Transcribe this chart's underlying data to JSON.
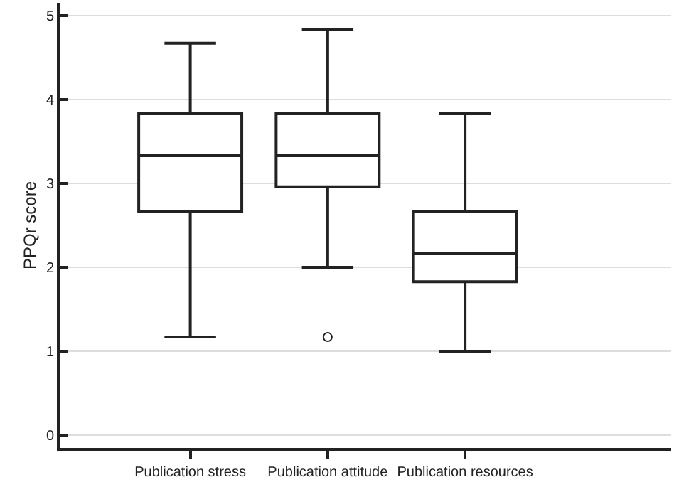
{
  "chart_data": {
    "type": "box",
    "ylabel": "PPQr score",
    "categories": [
      "Publication stress",
      "Publication attitude",
      "Publication resources"
    ],
    "boxes": [
      {
        "low": 1.17,
        "q1": 2.67,
        "median": 3.33,
        "q3": 3.83,
        "high": 4.67
      },
      {
        "low": 2.0,
        "q1": 2.96,
        "median": 3.33,
        "q3": 3.83,
        "high": 4.83,
        "outliers": [
          1.17
        ]
      },
      {
        "low": 1.0,
        "q1": 1.83,
        "median": 2.17,
        "q3": 2.67,
        "high": 3.83
      }
    ],
    "color": "#222222",
    "ylim": [
      -0.15,
      5.15
    ],
    "yticks": [
      0,
      1,
      2,
      3,
      4,
      5
    ],
    "grid": "y"
  }
}
